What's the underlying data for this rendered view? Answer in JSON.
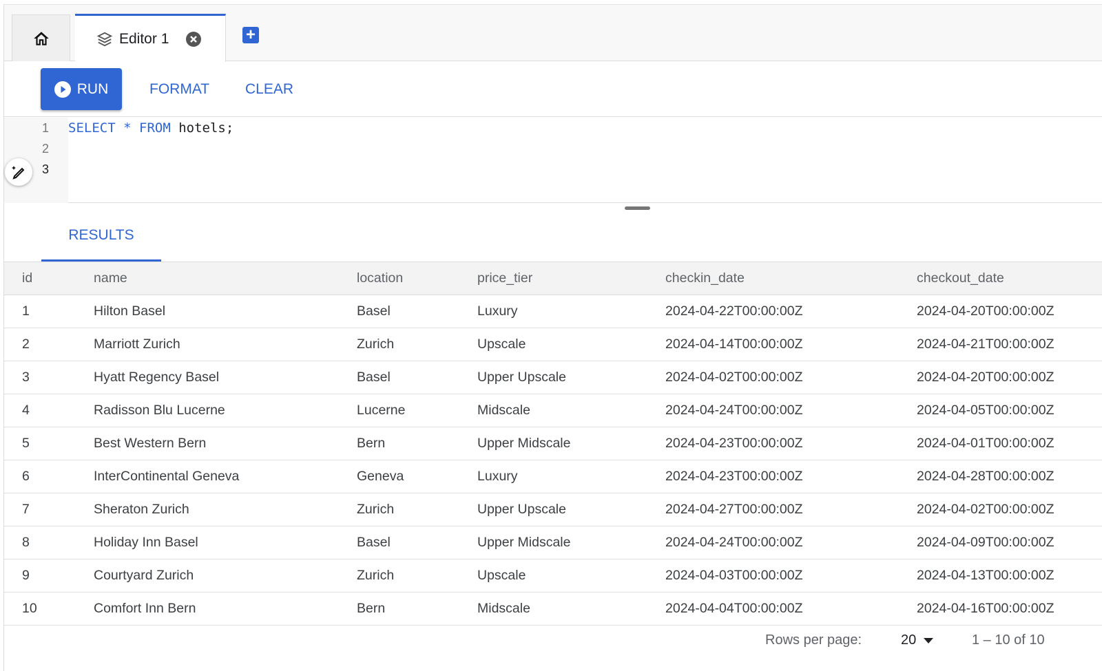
{
  "tabs": {
    "home_icon": "home-icon",
    "editor_label": "Editor 1",
    "editor_icon": "layers-icon",
    "close_icon": "close-circle-icon",
    "add_icon": "add-box-icon"
  },
  "toolbar": {
    "run": "RUN",
    "format": "FORMAT",
    "clear": "CLEAR"
  },
  "editor": {
    "line_numbers": [
      "1",
      "2",
      "3"
    ],
    "code": {
      "k1": "SELECT",
      "op": "*",
      "k2": "FROM",
      "rest": "hotels;"
    }
  },
  "results": {
    "tab_label": "RESULTS",
    "columns": [
      "id",
      "name",
      "location",
      "price_tier",
      "checkin_date",
      "checkout_date"
    ],
    "rows": [
      [
        "1",
        "Hilton Basel",
        "Basel",
        "Luxury",
        "2024-04-22T00:00:00Z",
        "2024-04-20T00:00:00Z"
      ],
      [
        "2",
        "Marriott Zurich",
        "Zurich",
        "Upscale",
        "2024-04-14T00:00:00Z",
        "2024-04-21T00:00:00Z"
      ],
      [
        "3",
        "Hyatt Regency Basel",
        "Basel",
        "Upper Upscale",
        "2024-04-02T00:00:00Z",
        "2024-04-20T00:00:00Z"
      ],
      [
        "4",
        "Radisson Blu Lucerne",
        "Lucerne",
        "Midscale",
        "2024-04-24T00:00:00Z",
        "2024-04-05T00:00:00Z"
      ],
      [
        "5",
        "Best Western Bern",
        "Bern",
        "Upper Midscale",
        "2024-04-23T00:00:00Z",
        "2024-04-01T00:00:00Z"
      ],
      [
        "6",
        "InterContinental Geneva",
        "Geneva",
        "Luxury",
        "2024-04-23T00:00:00Z",
        "2024-04-28T00:00:00Z"
      ],
      [
        "7",
        "Sheraton Zurich",
        "Zurich",
        "Upper Upscale",
        "2024-04-27T00:00:00Z",
        "2024-04-02T00:00:00Z"
      ],
      [
        "8",
        "Holiday Inn Basel",
        "Basel",
        "Upper Midscale",
        "2024-04-24T00:00:00Z",
        "2024-04-09T00:00:00Z"
      ],
      [
        "9",
        "Courtyard Zurich",
        "Zurich",
        "Upscale",
        "2024-04-03T00:00:00Z",
        "2024-04-13T00:00:00Z"
      ],
      [
        "10",
        "Comfort Inn Bern",
        "Bern",
        "Midscale",
        "2024-04-04T00:00:00Z",
        "2024-04-16T00:00:00Z"
      ]
    ]
  },
  "pagination": {
    "rows_per_page_label": "Rows per page:",
    "rows_per_page": "20",
    "range": "1 – 10 of 10"
  },
  "colors": {
    "accent": "#2f66d4"
  }
}
